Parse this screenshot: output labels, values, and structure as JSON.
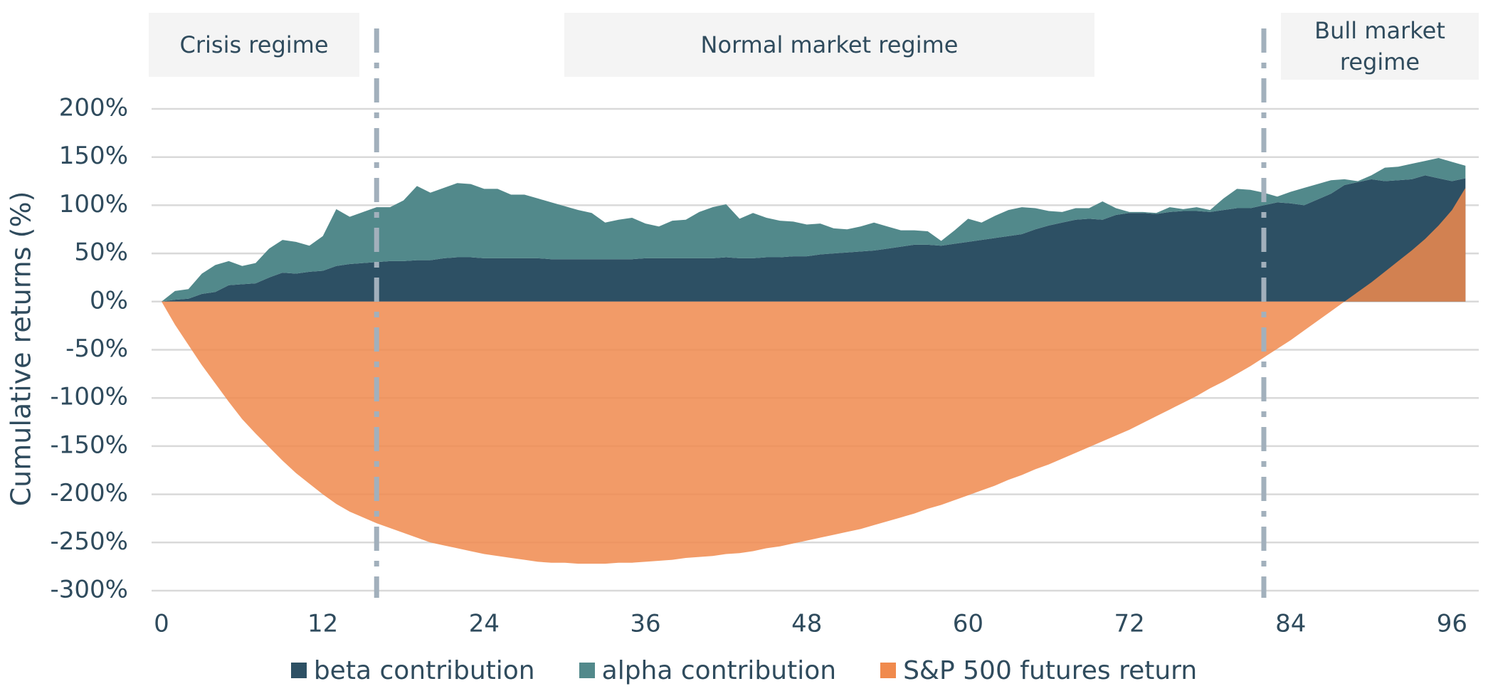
{
  "chart_data": {
    "type": "stacked-area",
    "y_label": "Cumulative returns (%)",
    "regimes": [
      "Crisis regime",
      "Normal market regime",
      "Bull market regime"
    ],
    "regime_breaks": [
      16,
      82
    ],
    "xlim": [
      0,
      97
    ],
    "xticks": [
      0,
      12,
      24,
      36,
      48,
      60,
      72,
      84,
      96
    ],
    "ylim": [
      -300,
      200
    ],
    "yticks": [
      {
        "value": -300,
        "label": "-300%"
      },
      {
        "value": -250,
        "label": "-250%"
      },
      {
        "value": -200,
        "label": "-200%"
      },
      {
        "value": -150,
        "label": "-150%"
      },
      {
        "value": -100,
        "label": "-100%"
      },
      {
        "value": -50,
        "label": "-50%"
      },
      {
        "value": 0,
        "label": "0%"
      },
      {
        "value": 50,
        "label": "50%"
      },
      {
        "value": 100,
        "label": "100%"
      },
      {
        "value": 150,
        "label": "150%"
      },
      {
        "value": 200,
        "label": "200%"
      }
    ],
    "grid": true,
    "legend": "bottom",
    "x": [
      0,
      1,
      2,
      3,
      4,
      5,
      6,
      7,
      8,
      9,
      10,
      11,
      12,
      13,
      14,
      15,
      16,
      17,
      18,
      19,
      20,
      21,
      22,
      23,
      24,
      25,
      26,
      27,
      28,
      29,
      30,
      31,
      32,
      33,
      34,
      35,
      36,
      37,
      38,
      39,
      40,
      41,
      42,
      43,
      44,
      45,
      46,
      47,
      48,
      49,
      50,
      51,
      52,
      53,
      54,
      55,
      56,
      57,
      58,
      59,
      60,
      61,
      62,
      63,
      64,
      65,
      66,
      67,
      68,
      69,
      70,
      71,
      72,
      73,
      74,
      75,
      76,
      77,
      78,
      79,
      80,
      81,
      82,
      83,
      84,
      85,
      86,
      87,
      88,
      89,
      90,
      91,
      92,
      93,
      94,
      95,
      96,
      97
    ],
    "series": [
      {
        "name": "beta contribution",
        "color": "#2d5064",
        "stack": true,
        "values": [
          0,
          2,
          3,
          8,
          10,
          17,
          18,
          19,
          25,
          30,
          29,
          31,
          32,
          37,
          39,
          40,
          41,
          42,
          42,
          43,
          43,
          45,
          46,
          46,
          45,
          45,
          45,
          45,
          45,
          44,
          44,
          44,
          44,
          44,
          44,
          44,
          45,
          45,
          45,
          45,
          45,
          45,
          46,
          45,
          45,
          46,
          46,
          47,
          47,
          49,
          50,
          51,
          52,
          53,
          55,
          57,
          59,
          59,
          58,
          60,
          62,
          64,
          66,
          68,
          70,
          75,
          79,
          82,
          85,
          86,
          85,
          90,
          92,
          92,
          91,
          93,
          94,
          94,
          93,
          95,
          97,
          97,
          100,
          103,
          102,
          100,
          106,
          112,
          121,
          124,
          127,
          125,
          126,
          127,
          131,
          128,
          125,
          128
        ]
      },
      {
        "name": "alpha contribution",
        "color": "#52898b",
        "stack": true,
        "values": [
          0,
          9,
          10,
          21,
          28,
          25,
          19,
          21,
          30,
          34,
          33,
          27,
          36,
          59,
          49,
          53,
          57,
          56,
          63,
          77,
          70,
          73,
          77,
          76,
          72,
          72,
          66,
          66,
          62,
          59,
          55,
          51,
          48,
          38,
          41,
          43,
          36,
          33,
          39,
          40,
          48,
          53,
          55,
          41,
          47,
          41,
          38,
          36,
          33,
          32,
          26,
          24,
          26,
          29,
          23,
          17,
          15,
          14,
          5,
          14,
          24,
          18,
          23,
          27,
          28,
          22,
          15,
          11,
          12,
          11,
          19,
          7,
          1,
          1,
          1,
          5,
          2,
          4,
          2,
          12,
          20,
          19,
          13,
          6,
          12,
          18,
          16,
          14,
          6,
          1,
          4,
          14,
          14,
          16,
          15,
          21,
          20,
          13
        ]
      },
      {
        "name": "S&P 500 futures return",
        "color": "#f08a4d",
        "stack": false,
        "values": [
          0,
          -24,
          -45,
          -66,
          -85,
          -104,
          -122,
          -137,
          -151,
          -165,
          -178,
          -189,
          -200,
          -210,
          -218,
          -224,
          -230,
          -235,
          -240,
          -245,
          -250,
          -253,
          -256,
          -259,
          -262,
          -264,
          -266,
          -268,
          -270,
          -271,
          -271,
          -272,
          -272,
          -272,
          -271,
          -271,
          -270,
          -269,
          -268,
          -266,
          -265,
          -264,
          -262,
          -261,
          -259,
          -256,
          -254,
          -251,
          -248,
          -245,
          -242,
          -239,
          -236,
          -232,
          -228,
          -224,
          -220,
          -215,
          -211,
          -206,
          -201,
          -196,
          -191,
          -185,
          -180,
          -174,
          -169,
          -163,
          -157,
          -151,
          -145,
          -139,
          -133,
          -126,
          -119,
          -112,
          -105,
          -98,
          -90,
          -83,
          -75,
          -67,
          -58,
          -49,
          -40,
          -30,
          -20,
          -10,
          0,
          10,
          20,
          31,
          42,
          53,
          65,
          79,
          95,
          118
        ]
      }
    ]
  }
}
